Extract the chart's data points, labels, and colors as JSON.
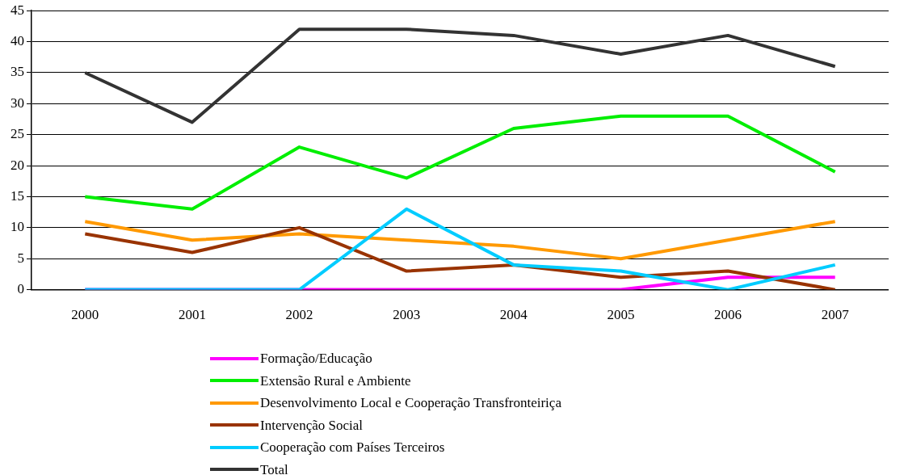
{
  "chart_data": {
    "type": "line",
    "categories": [
      "2000",
      "2001",
      "2002",
      "2003",
      "2004",
      "2005",
      "2006",
      "2007"
    ],
    "ylim": [
      0,
      45
    ],
    "yticks": [
      0,
      5,
      10,
      15,
      20,
      25,
      30,
      35,
      40,
      45
    ],
    "grid": "y",
    "legend": "bottom",
    "marker": "none",
    "line_style": "solid",
    "series": [
      {
        "name": "Formação/Educação",
        "color": "#ff00ff",
        "values": [
          0,
          0,
          0,
          0,
          0,
          0,
          2,
          2
        ]
      },
      {
        "name": "Extensão Rural e Ambiente",
        "color": "#00ee00",
        "values": [
          15,
          13,
          23,
          18,
          26,
          28,
          28,
          19
        ]
      },
      {
        "name": "Desenvolvimento Local e Cooperação Transfronteiriça",
        "color": "#ff9900",
        "values": [
          11,
          8,
          9,
          8,
          7,
          5,
          8,
          11
        ]
      },
      {
        "name": "Intervenção Social",
        "color": "#993300",
        "values": [
          9,
          6,
          10,
          3,
          4,
          2,
          3,
          0
        ]
      },
      {
        "name": "Cooperação com Países Terceiros",
        "color": "#00ccff",
        "values": [
          0,
          0,
          0,
          13,
          4,
          3,
          0,
          4
        ]
      },
      {
        "name": "Total",
        "color": "#333333",
        "values": [
          35,
          27,
          42,
          42,
          41,
          38,
          41,
          36
        ]
      }
    ]
  }
}
